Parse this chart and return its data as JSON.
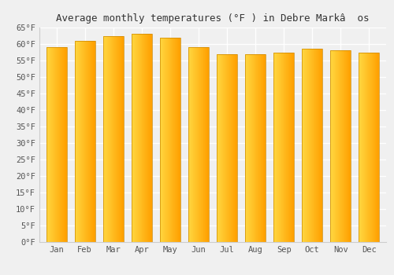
{
  "title": "Average monthly temperatures (°F ) in Debre Markâ  os",
  "months": [
    "Jan",
    "Feb",
    "Mar",
    "Apr",
    "May",
    "Jun",
    "Jul",
    "Aug",
    "Sep",
    "Oct",
    "Nov",
    "Dec"
  ],
  "values": [
    59.0,
    61.0,
    62.5,
    63.0,
    62.0,
    59.0,
    57.0,
    57.0,
    57.5,
    58.5,
    58.0,
    57.5
  ],
  "ylim": [
    0,
    65
  ],
  "ytick_step": 5,
  "background_color": "#f0f0f0",
  "grid_color": "#ffffff",
  "bar_color_left": "#FFD740",
  "bar_color_right": "#FFA000",
  "bar_edge_color": "#CC8800",
  "font_family": "monospace",
  "title_fontsize": 9,
  "tick_fontsize": 7.5,
  "bar_width": 0.72
}
